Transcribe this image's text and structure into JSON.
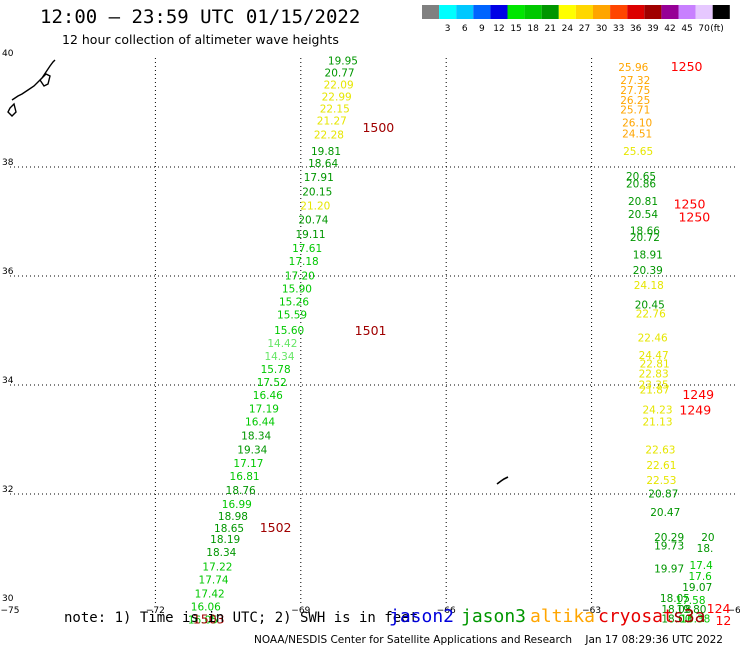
{
  "header": {
    "title": "12:00 — 23:59 UTC 01/15/2022",
    "subtitle": "12 hour collection of altimeter wave heights"
  },
  "legend": {
    "unit": "(ft)",
    "bins": [
      {
        "label": "",
        "color": "#808080"
      },
      {
        "label": "3",
        "color": "#00ffff"
      },
      {
        "label": "6",
        "color": "#00c8ff"
      },
      {
        "label": "9",
        "color": "#0064ff"
      },
      {
        "label": "12",
        "color": "#0000e6"
      },
      {
        "label": "15",
        "color": "#00e600"
      },
      {
        "label": "18",
        "color": "#00c800"
      },
      {
        "label": "21",
        "color": "#009600"
      },
      {
        "label": "24",
        "color": "#ffff00"
      },
      {
        "label": "27",
        "color": "#ffd700"
      },
      {
        "label": "30",
        "color": "#ffa500"
      },
      {
        "label": "33",
        "color": "#ff4500"
      },
      {
        "label": "36",
        "color": "#dc0000"
      },
      {
        "label": "39",
        "color": "#a00000"
      },
      {
        "label": "42",
        "color": "#960096"
      },
      {
        "label": "45",
        "color": "#c880ff"
      },
      {
        "label": "70",
        "color": "#e6c8ff"
      },
      {
        "label": "",
        "color": "#000000"
      }
    ]
  },
  "map": {
    "lon_ticks": [
      {
        "lon": -75,
        "label": "−75"
      },
      {
        "lon": -72,
        "label": "−72"
      },
      {
        "lon": -69,
        "label": "−69"
      },
      {
        "lon": -66,
        "label": "−66"
      },
      {
        "lon": -63,
        "label": "−63"
      },
      {
        "lon": -60,
        "label": "−60"
      }
    ],
    "lat_ticks": [
      {
        "lat": 40,
        "label": "40"
      },
      {
        "lat": 38,
        "label": "38"
      },
      {
        "lat": 36,
        "label": "36"
      },
      {
        "lat": 34,
        "label": "34"
      },
      {
        "lat": 32,
        "label": "32"
      },
      {
        "lat": 30,
        "label": "30"
      }
    ],
    "colors": {
      "yellow": "#e6e600",
      "orange": "#ffa500",
      "dkgreen": "#009600",
      "green": "#00c800",
      "ltgreen": "#66e666",
      "red": "#ff0000",
      "maroon": "#a00000"
    },
    "observations": [
      {
        "lon": -68.13,
        "lat": 39.88,
        "text": "19.95",
        "c": "dkgreen"
      },
      {
        "lon": -68.2,
        "lat": 39.66,
        "text": "20.77",
        "c": "dkgreen"
      },
      {
        "lon": -68.22,
        "lat": 39.44,
        "text": "22.09",
        "c": "yellow"
      },
      {
        "lon": -68.26,
        "lat": 39.22,
        "text": "22.99",
        "c": "yellow"
      },
      {
        "lon": -68.3,
        "lat": 39.0,
        "text": "22.15",
        "c": "yellow"
      },
      {
        "lon": -68.36,
        "lat": 38.78,
        "text": "21.27",
        "c": "yellow"
      },
      {
        "lon": -68.42,
        "lat": 38.52,
        "text": "22.28",
        "c": "yellow"
      },
      {
        "lon": -68.48,
        "lat": 38.22,
        "text": "19.81",
        "c": "dkgreen"
      },
      {
        "lon": -68.54,
        "lat": 38.0,
        "text": "18.64",
        "c": "dkgreen"
      },
      {
        "lon": -68.63,
        "lat": 37.74,
        "text": "17.91",
        "c": "dkgreen"
      },
      {
        "lon": -68.66,
        "lat": 37.48,
        "text": "20.15",
        "c": "dkgreen"
      },
      {
        "lon": -68.7,
        "lat": 37.22,
        "text": "21.20",
        "c": "yellow"
      },
      {
        "lon": -68.74,
        "lat": 36.96,
        "text": "20.74",
        "c": "dkgreen"
      },
      {
        "lon": -68.8,
        "lat": 36.7,
        "text": "19.11",
        "c": "dkgreen"
      },
      {
        "lon": -68.87,
        "lat": 36.44,
        "text": "17.61",
        "c": "green"
      },
      {
        "lon": -68.94,
        "lat": 36.2,
        "text": "17.18",
        "c": "green"
      },
      {
        "lon": -69.02,
        "lat": 35.94,
        "text": "17.20",
        "c": "green"
      },
      {
        "lon": -69.08,
        "lat": 35.7,
        "text": "15.90",
        "c": "green"
      },
      {
        "lon": -69.14,
        "lat": 35.46,
        "text": "15.26",
        "c": "green"
      },
      {
        "lon": -69.18,
        "lat": 35.22,
        "text": "15.59",
        "c": "green"
      },
      {
        "lon": -69.24,
        "lat": 34.94,
        "text": "15.60",
        "c": "green"
      },
      {
        "lon": -69.38,
        "lat": 34.7,
        "text": "14.42",
        "c": "ltgreen"
      },
      {
        "lon": -69.44,
        "lat": 34.46,
        "text": "14.34",
        "c": "ltgreen"
      },
      {
        "lon": -69.52,
        "lat": 34.22,
        "text": "15.78",
        "c": "green"
      },
      {
        "lon": -69.6,
        "lat": 33.98,
        "text": "17.52",
        "c": "green"
      },
      {
        "lon": -69.68,
        "lat": 33.74,
        "text": "16.46",
        "c": "green"
      },
      {
        "lon": -69.76,
        "lat": 33.5,
        "text": "17.19",
        "c": "green"
      },
      {
        "lon": -69.84,
        "lat": 33.26,
        "text": "16.44",
        "c": "green"
      },
      {
        "lon": -69.92,
        "lat": 33.0,
        "text": "18.34",
        "c": "dkgreen"
      },
      {
        "lon": -70.0,
        "lat": 32.74,
        "text": "19.34",
        "c": "dkgreen"
      },
      {
        "lon": -70.08,
        "lat": 32.5,
        "text": "17.17",
        "c": "green"
      },
      {
        "lon": -70.16,
        "lat": 32.26,
        "text": "16.81",
        "c": "green"
      },
      {
        "lon": -70.24,
        "lat": 32.0,
        "text": "18.76",
        "c": "dkgreen"
      },
      {
        "lon": -70.32,
        "lat": 31.74,
        "text": "16.99",
        "c": "green"
      },
      {
        "lon": -70.4,
        "lat": 31.52,
        "text": "18.98",
        "c": "dkgreen"
      },
      {
        "lon": -70.48,
        "lat": 31.3,
        "text": "18.65",
        "c": "dkgreen"
      },
      {
        "lon": -70.56,
        "lat": 31.1,
        "text": "18.19",
        "c": "dkgreen"
      },
      {
        "lon": -70.64,
        "lat": 30.86,
        "text": "18.34",
        "c": "dkgreen"
      },
      {
        "lon": -70.72,
        "lat": 30.6,
        "text": "17.22",
        "c": "green"
      },
      {
        "lon": -70.8,
        "lat": 30.36,
        "text": "17.74",
        "c": "green"
      },
      {
        "lon": -70.88,
        "lat": 30.1,
        "text": "17.42",
        "c": "green"
      },
      {
        "lon": -70.96,
        "lat": 29.86,
        "text": "16.06",
        "c": "green"
      },
      {
        "lon": -71.02,
        "lat": 29.62,
        "text": "16.05",
        "c": "green"
      },
      {
        "lon": -62.14,
        "lat": 39.76,
        "text": "25.96",
        "c": "orange"
      },
      {
        "lon": -62.1,
        "lat": 39.52,
        "text": "27.32",
        "c": "orange"
      },
      {
        "lon": -62.1,
        "lat": 39.34,
        "text": "27.75",
        "c": "orange"
      },
      {
        "lon": -62.1,
        "lat": 39.16,
        "text": "26.25",
        "c": "orange"
      },
      {
        "lon": -62.1,
        "lat": 38.98,
        "text": "25.71",
        "c": "orange"
      },
      {
        "lon": -62.06,
        "lat": 38.74,
        "text": "26.10",
        "c": "orange"
      },
      {
        "lon": -62.06,
        "lat": 38.54,
        "text": "24.51",
        "c": "orange"
      },
      {
        "lon": -62.04,
        "lat": 38.22,
        "text": "25.65",
        "c": "yellow"
      },
      {
        "lon": -61.98,
        "lat": 37.76,
        "text": "20.65",
        "c": "dkgreen"
      },
      {
        "lon": -61.98,
        "lat": 37.62,
        "text": "20.86",
        "c": "dkgreen"
      },
      {
        "lon": -61.94,
        "lat": 37.3,
        "text": "20.81",
        "c": "dkgreen"
      },
      {
        "lon": -61.94,
        "lat": 37.06,
        "text": "20.54",
        "c": "dkgreen"
      },
      {
        "lon": -61.9,
        "lat": 36.76,
        "text": "18.66",
        "c": "dkgreen"
      },
      {
        "lon": -61.9,
        "lat": 36.64,
        "text": "20.72",
        "c": "dkgreen"
      },
      {
        "lon": -61.84,
        "lat": 36.32,
        "text": "18.91",
        "c": "dkgreen"
      },
      {
        "lon": -61.84,
        "lat": 36.04,
        "text": "20.39",
        "c": "dkgreen"
      },
      {
        "lon": -61.82,
        "lat": 35.76,
        "text": "24.18",
        "c": "yellow"
      },
      {
        "lon": -61.8,
        "lat": 35.4,
        "text": "20.45",
        "c": "dkgreen"
      },
      {
        "lon": -61.78,
        "lat": 35.24,
        "text": "22.76",
        "c": "yellow"
      },
      {
        "lon": -61.74,
        "lat": 34.8,
        "text": "22.46",
        "c": "yellow"
      },
      {
        "lon": -61.72,
        "lat": 34.48,
        "text": "24.47",
        "c": "yellow"
      },
      {
        "lon": -61.7,
        "lat": 34.32,
        "text": "22.81",
        "c": "yellow"
      },
      {
        "lon": -61.72,
        "lat": 34.14,
        "text": "22.83",
        "c": "yellow"
      },
      {
        "lon": -61.72,
        "lat": 33.94,
        "text": "23.35",
        "c": "yellow"
      },
      {
        "lon": -61.7,
        "lat": 33.84,
        "text": "21.87",
        "c": "yellow"
      },
      {
        "lon": -61.64,
        "lat": 33.48,
        "text": "24.23",
        "c": "yellow"
      },
      {
        "lon": -61.64,
        "lat": 33.26,
        "text": "21.13",
        "c": "yellow"
      },
      {
        "lon": -61.58,
        "lat": 32.74,
        "text": "22.63",
        "c": "yellow"
      },
      {
        "lon": -61.56,
        "lat": 32.46,
        "text": "22.61",
        "c": "yellow"
      },
      {
        "lon": -61.56,
        "lat": 32.18,
        "text": "22.53",
        "c": "yellow"
      },
      {
        "lon": -61.52,
        "lat": 31.94,
        "text": "20.87",
        "c": "dkgreen"
      },
      {
        "lon": -61.48,
        "lat": 31.6,
        "text": "20.47",
        "c": "dkgreen"
      },
      {
        "lon": -61.4,
        "lat": 31.14,
        "text": "20.29",
        "c": "dkgreen"
      },
      {
        "lon": -61.4,
        "lat": 30.98,
        "text": "19.73",
        "c": "dkgreen"
      },
      {
        "lon": -61.4,
        "lat": 30.56,
        "text": "19.97",
        "c": "dkgreen"
      },
      {
        "lon": -61.28,
        "lat": 30.02,
        "text": "18.05",
        "c": "dkgreen"
      },
      {
        "lon": -61.25,
        "lat": 29.82,
        "text": "18.08",
        "c": "dkgreen"
      },
      {
        "lon": -61.25,
        "lat": 29.64,
        "text": "18.00",
        "c": "dkgreen"
      },
      {
        "lon": -60.6,
        "lat": 31.14,
        "text": "20",
        "c": "dkgreen"
      },
      {
        "lon": -60.66,
        "lat": 30.94,
        "text": "18.",
        "c": "dkgreen"
      },
      {
        "lon": -60.74,
        "lat": 30.62,
        "text": "17.4",
        "c": "green"
      },
      {
        "lon": -60.76,
        "lat": 30.42,
        "text": "17.6",
        "c": "green"
      },
      {
        "lon": -60.82,
        "lat": 30.22,
        "text": "19.07",
        "c": "dkgreen"
      },
      {
        "lon": -60.96,
        "lat": 29.98,
        "text": "17.58",
        "c": "green"
      },
      {
        "lon": -60.94,
        "lat": 29.82,
        "text": "19.80",
        "c": "dkgreen"
      },
      {
        "lon": -60.86,
        "lat": 29.64,
        "text": "16.38",
        "c": "green"
      }
    ],
    "times": [
      {
        "lon": -61.04,
        "lat": 39.76,
        "text": "1250",
        "c": "red"
      },
      {
        "lon": -67.4,
        "lat": 38.64,
        "text": "1500",
        "c": "maroon"
      },
      {
        "lon": -60.98,
        "lat": 37.24,
        "text": "1250",
        "c": "red"
      },
      {
        "lon": -60.88,
        "lat": 37.0,
        "text": "1250",
        "c": "red"
      },
      {
        "lon": -67.56,
        "lat": 34.92,
        "text": "1501",
        "c": "maroon"
      },
      {
        "lon": -60.8,
        "lat": 33.74,
        "text": "1249",
        "c": "red"
      },
      {
        "lon": -60.86,
        "lat": 33.46,
        "text": "1249",
        "c": "red"
      },
      {
        "lon": -69.52,
        "lat": 31.3,
        "text": "1502",
        "c": "maroon"
      },
      {
        "lon": -70.9,
        "lat": 29.62,
        "text": "1503",
        "c": "maroon"
      },
      {
        "lon": -60.38,
        "lat": 29.82,
        "text": "124",
        "c": "red"
      },
      {
        "lon": -60.28,
        "lat": 29.6,
        "text": "12",
        "c": "red"
      }
    ]
  },
  "footer": {
    "note": "note: 1) Time is in UTC; 2) SWH is in feet",
    "satellites": [
      {
        "name": "jason2",
        "color": "#0000dc"
      },
      {
        "name": "jason3",
        "color": "#009600"
      },
      {
        "name": "altika",
        "color": "#ffa500"
      },
      {
        "name": "cryosat",
        "color": "#e60000"
      },
      {
        "name": "s3a",
        "color": "#a00000"
      }
    ],
    "credit": "NOAA/NESDIS Center for Satellite Applications and Research    Jan 17 08:29:36 UTC 2022"
  }
}
